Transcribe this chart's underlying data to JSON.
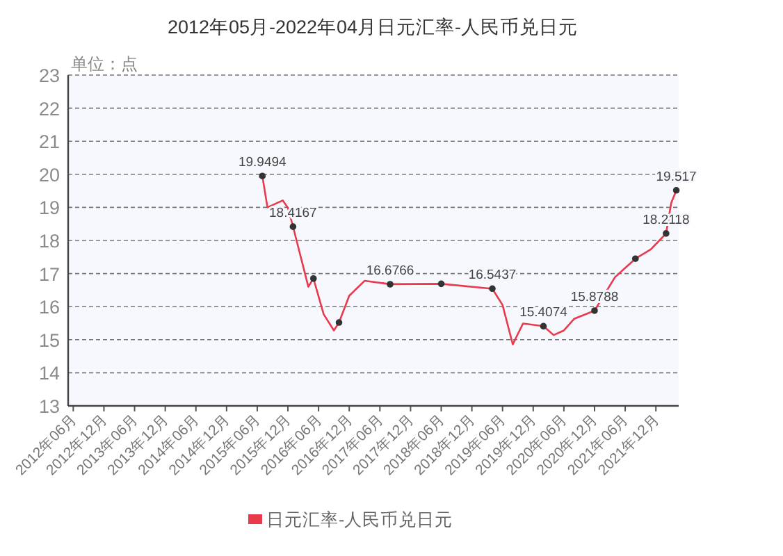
{
  "chart_data": {
    "type": "line",
    "title": "2012年05月-2022年04月日元汇率-人民币兑日元",
    "ylabel": "单位：点",
    "xlim": [
      "2012-05",
      "2022-04-15"
    ],
    "xticks": [
      {
        "value": "2012-06",
        "label": "2012年06月"
      },
      {
        "value": "2012-12",
        "label": "2012年12月"
      },
      {
        "value": "2013-06",
        "label": "2013年06月"
      },
      {
        "value": "2013-12",
        "label": "2013年12月"
      },
      {
        "value": "2014-06",
        "label": "2014年06月"
      },
      {
        "value": "2014-12",
        "label": "2014年12月"
      },
      {
        "value": "2015-06",
        "label": "2015年06月"
      },
      {
        "value": "2015-12",
        "label": "2015年12月"
      },
      {
        "value": "2016-06",
        "label": "2016年06月"
      },
      {
        "value": "2016-12",
        "label": "2016年12月"
      },
      {
        "value": "2017-06",
        "label": "2017年06月"
      },
      {
        "value": "2017-12",
        "label": "2017年12月"
      },
      {
        "value": "2018-06",
        "label": "2018年06月"
      },
      {
        "value": "2018-12",
        "label": "2018年12月"
      },
      {
        "value": "2019-06",
        "label": "2019年06月"
      },
      {
        "value": "2019-12",
        "label": "2019年12月"
      },
      {
        "value": "2020-06",
        "label": "2020年06月"
      },
      {
        "value": "2020-12",
        "label": "2020年12月"
      },
      {
        "value": "2021-06",
        "label": "2021年06月"
      },
      {
        "value": "2021-12",
        "label": "2021年12月"
      }
    ],
    "ylim": [
      13,
      23
    ],
    "yticks": [
      13,
      14,
      15,
      16,
      17,
      18,
      19,
      20,
      21,
      22,
      23
    ],
    "grid": "y",
    "legend": "bottom",
    "series": [
      {
        "name": "日元汇率-人民币兑日元",
        "color": "#e8394d",
        "line_style": "solid",
        "x": [
          "2015-07",
          "2015-08",
          "2015-11",
          "2015-12",
          "2016-01",
          "2016-04",
          "2016-05",
          "2016-07",
          "2016-09",
          "2016-10",
          "2016-12",
          "2017-03",
          "2017-08",
          "2018-06",
          "2019-04",
          "2019-06",
          "2019-08",
          "2019-10",
          "2020-02",
          "2020-04",
          "2020-06",
          "2020-08",
          "2020-12",
          "2021-04",
          "2021-06",
          "2021-08",
          "2021-11",
          "2022-02",
          "2022-03",
          "2022-04"
        ],
        "values": [
          19.95,
          19.0,
          19.21,
          18.99,
          18.42,
          16.6,
          16.85,
          15.77,
          15.28,
          15.52,
          16.33,
          16.78,
          16.68,
          16.69,
          16.54,
          16.05,
          14.86,
          15.49,
          15.41,
          15.14,
          15.28,
          15.63,
          15.88,
          16.89,
          17.17,
          17.45,
          17.73,
          18.21,
          19.13,
          19.52
        ]
      },
      {
        "type": "scatter",
        "color": "#333333",
        "marker": "circle",
        "x": [
          "2015-07",
          "2016-01",
          "2016-05",
          "2016-10",
          "2017-08",
          "2018-06",
          "2019-04",
          "2020-02",
          "2020-12",
          "2021-08",
          "2022-02",
          "2022-04"
        ],
        "values": [
          19.9494,
          18.4167,
          16.85,
          15.52,
          16.6766,
          16.69,
          16.5437,
          15.4074,
          15.8788,
          17.45,
          18.2118,
          19.517
        ],
        "value_labels": [
          "19.9494",
          "18.4167",
          null,
          null,
          "16.6766",
          null,
          "16.5437",
          "15.4074",
          "15.8788",
          null,
          "18.2118",
          "19.517"
        ]
      }
    ]
  }
}
